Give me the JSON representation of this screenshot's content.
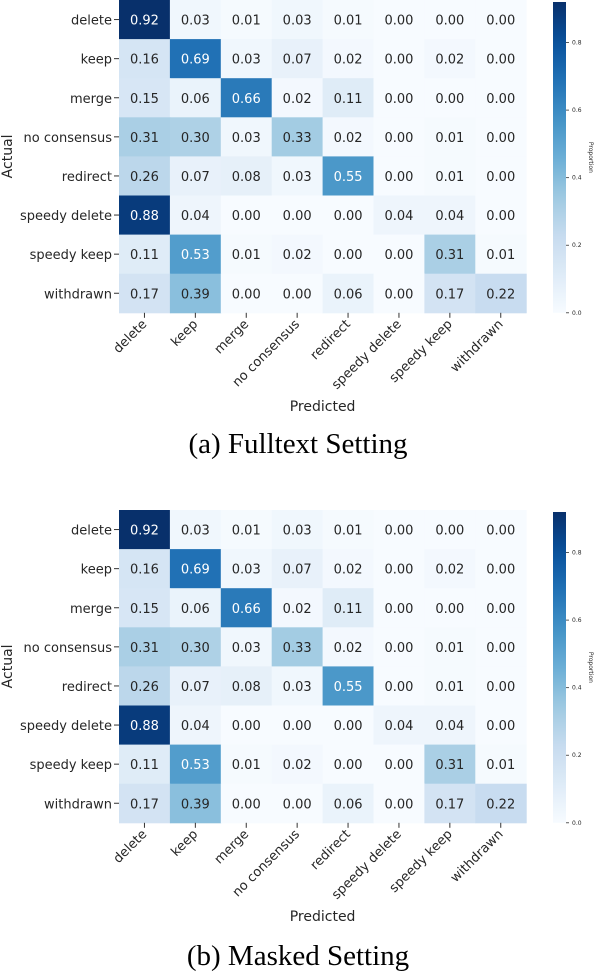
{
  "chart_data": [
    {
      "type": "heatmap",
      "caption": "(a) Fulltext Setting",
      "xlabel": "Predicted",
      "ylabel": "Actual",
      "colorbar_label": "Proportion",
      "colorbar_ticks": [
        "0.0",
        "0.2",
        "0.4",
        "0.6",
        "0.8"
      ],
      "colorbar_range": [
        0,
        0.92
      ],
      "x_categories": [
        "delete",
        "keep",
        "merge",
        "no consensus",
        "redirect",
        "speedy delete",
        "speedy keep",
        "withdrawn"
      ],
      "y_categories": [
        "delete",
        "keep",
        "merge",
        "no consensus",
        "redirect",
        "speedy delete",
        "speedy keep",
        "withdrawn"
      ],
      "values": [
        [
          "0.92",
          "0.03",
          "0.01",
          "0.03",
          "0.01",
          "0.00",
          "0.00",
          "0.00"
        ],
        [
          "0.16",
          "0.69",
          "0.03",
          "0.07",
          "0.02",
          "0.00",
          "0.02",
          "0.00"
        ],
        [
          "0.15",
          "0.06",
          "0.66",
          "0.02",
          "0.11",
          "0.00",
          "0.00",
          "0.00"
        ],
        [
          "0.31",
          "0.30",
          "0.03",
          "0.33",
          "0.02",
          "0.00",
          "0.01",
          "0.00"
        ],
        [
          "0.26",
          "0.07",
          "0.08",
          "0.03",
          "0.55",
          "0.00",
          "0.01",
          "0.00"
        ],
        [
          "0.88",
          "0.04",
          "0.00",
          "0.00",
          "0.00",
          "0.04",
          "0.04",
          "0.00"
        ],
        [
          "0.11",
          "0.53",
          "0.01",
          "0.02",
          "0.00",
          "0.00",
          "0.31",
          "0.01"
        ],
        [
          "0.17",
          "0.39",
          "0.00",
          "0.00",
          "0.06",
          "0.00",
          "0.17",
          "0.22"
        ]
      ]
    },
    {
      "type": "heatmap",
      "caption": "(b) Masked Setting",
      "xlabel": "Predicted",
      "ylabel": "Actual",
      "colorbar_label": "Proportion",
      "colorbar_ticks": [
        "0.0",
        "0.2",
        "0.4",
        "0.6",
        "0.8"
      ],
      "colorbar_range": [
        0,
        0.92
      ],
      "x_categories": [
        "delete",
        "keep",
        "merge",
        "no consensus",
        "redirect",
        "speedy delete",
        "speedy keep",
        "withdrawn"
      ],
      "y_categories": [
        "delete",
        "keep",
        "merge",
        "no consensus",
        "redirect",
        "speedy delete",
        "speedy keep",
        "withdrawn"
      ],
      "values": [
        [
          "0.92",
          "0.03",
          "0.01",
          "0.03",
          "0.01",
          "0.00",
          "0.00",
          "0.00"
        ],
        [
          "0.16",
          "0.69",
          "0.03",
          "0.07",
          "0.02",
          "0.00",
          "0.02",
          "0.00"
        ],
        [
          "0.15",
          "0.06",
          "0.66",
          "0.02",
          "0.11",
          "0.00",
          "0.00",
          "0.00"
        ],
        [
          "0.31",
          "0.30",
          "0.03",
          "0.33",
          "0.02",
          "0.00",
          "0.01",
          "0.00"
        ],
        [
          "0.26",
          "0.07",
          "0.08",
          "0.03",
          "0.55",
          "0.00",
          "0.01",
          "0.00"
        ],
        [
          "0.88",
          "0.04",
          "0.00",
          "0.00",
          "0.00",
          "0.04",
          "0.04",
          "0.00"
        ],
        [
          "0.11",
          "0.53",
          "0.01",
          "0.02",
          "0.00",
          "0.00",
          "0.31",
          "0.01"
        ],
        [
          "0.17",
          "0.39",
          "0.00",
          "0.00",
          "0.06",
          "0.00",
          "0.17",
          "0.22"
        ]
      ]
    }
  ]
}
